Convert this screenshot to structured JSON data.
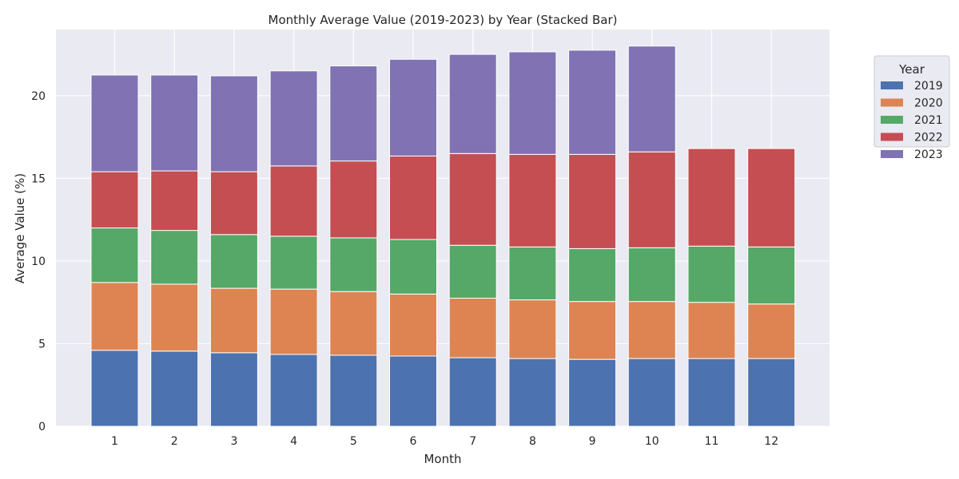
{
  "chart_data": {
    "type": "bar",
    "stacked": true,
    "title": "Monthly Average Value (2019-2023) by Year (Stacked Bar)",
    "xlabel": "Month",
    "ylabel": "Average Value (%)",
    "categories": [
      "1",
      "2",
      "3",
      "4",
      "5",
      "6",
      "7",
      "8",
      "9",
      "10",
      "11",
      "12"
    ],
    "ylim": [
      0,
      24
    ],
    "yticks": [
      0,
      5,
      10,
      15,
      20
    ],
    "grid": true,
    "legend": {
      "title": "Year",
      "placement": "upper-right-outside"
    },
    "series": [
      {
        "name": "2019",
        "color": "#4c72b0",
        "values": [
          4.6,
          4.55,
          4.45,
          4.35,
          4.3,
          4.25,
          4.15,
          4.1,
          4.05,
          4.1,
          4.1,
          4.1
        ]
      },
      {
        "name": "2020",
        "color": "#dd8452",
        "values": [
          4.1,
          4.05,
          3.9,
          3.95,
          3.85,
          3.75,
          3.6,
          3.55,
          3.5,
          3.45,
          3.4,
          3.3
        ]
      },
      {
        "name": "2021",
        "color": "#55a868",
        "values": [
          3.3,
          3.25,
          3.25,
          3.2,
          3.25,
          3.3,
          3.2,
          3.2,
          3.2,
          3.25,
          3.4,
          3.45
        ]
      },
      {
        "name": "2022",
        "color": "#c44e52",
        "values": [
          3.4,
          3.6,
          3.8,
          4.25,
          4.65,
          5.05,
          5.55,
          5.6,
          5.7,
          5.8,
          5.9,
          5.95
        ]
      },
      {
        "name": "2023",
        "color": "#8172b3",
        "values": [
          5.85,
          5.8,
          5.8,
          5.75,
          5.75,
          5.85,
          6.0,
          6.2,
          6.3,
          6.4,
          0,
          0
        ]
      }
    ]
  }
}
